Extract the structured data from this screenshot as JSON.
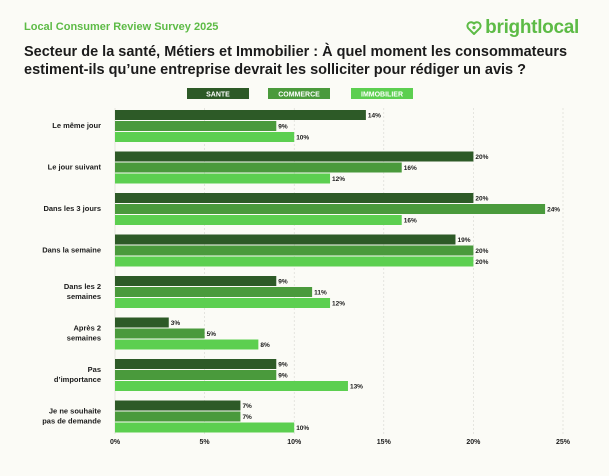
{
  "header": {
    "survey_title": "Local Consumer Review Survey 2025",
    "brand": "brightlocal",
    "brand_color": "#5dbb46"
  },
  "chart_data": {
    "type": "bar",
    "orientation": "horizontal",
    "title": "Secteur de la santé, Métiers et Immobilier : À quel moment les consommateurs estiment-ils qu’une entreprise devrait les solliciter pour rédiger un avis ?",
    "categories": [
      [
        "Le même jour"
      ],
      [
        "Le jour suivant"
      ],
      [
        "Dans les 3 jours"
      ],
      [
        "Dans la semaine"
      ],
      [
        "Dans les 2",
        "semaines"
      ],
      [
        "Après 2",
        "semaines"
      ],
      [
        "Pas",
        "d’importance"
      ],
      [
        "Je ne souhaite",
        "pas de demande"
      ]
    ],
    "series": [
      {
        "name": "SANTE",
        "color": "#2d5a27",
        "values": [
          14,
          20,
          20,
          19,
          9,
          3,
          9,
          7
        ]
      },
      {
        "name": "COMMERCE",
        "color": "#4a9a3c",
        "values": [
          9,
          16,
          24,
          20,
          11,
          5,
          9,
          7
        ]
      },
      {
        "name": "IMMOBILIER",
        "color": "#5ccf50",
        "values": [
          10,
          12,
          16,
          20,
          12,
          8,
          13,
          10
        ]
      }
    ],
    "xlim": [
      0,
      25
    ],
    "xticks": [
      "0%",
      "5%",
      "10%",
      "15%",
      "20%",
      "25%"
    ],
    "value_suffix": "%",
    "grid": true,
    "legend_position": "top"
  }
}
